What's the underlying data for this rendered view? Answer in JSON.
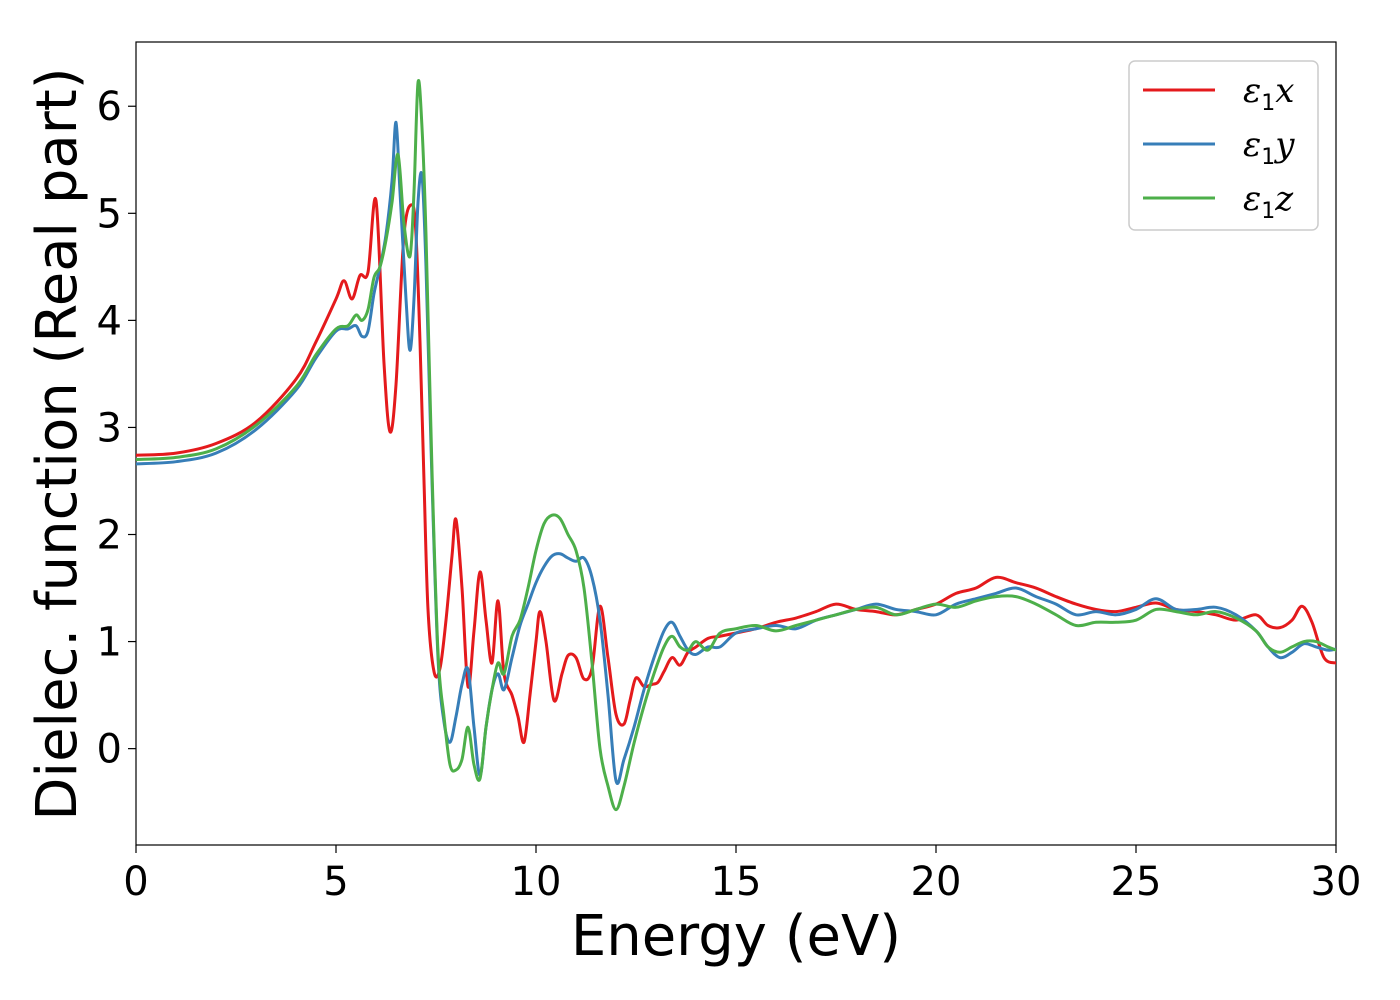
{
  "chart_data": {
    "type": "line",
    "title": "",
    "xlabel": "Energy (eV)",
    "ylabel": "Dielec. function (Real part)",
    "xlim": [
      0,
      30
    ],
    "ylim": [
      -0.9,
      6.6
    ],
    "xticks": [
      0,
      5,
      10,
      15,
      20,
      25,
      30
    ],
    "yticks": [
      0,
      1,
      2,
      3,
      4,
      5,
      6
    ],
    "grid": false,
    "legend_position": "top-right",
    "series": [
      {
        "name": "ε1x",
        "legend": {
          "symbol": "ε",
          "sub": "1",
          "var": "x"
        },
        "color": "#e41a1c",
        "x": [
          0,
          1,
          2,
          3,
          4,
          4.5,
          5,
          5.2,
          5.4,
          5.6,
          5.8,
          6.0,
          6.2,
          6.35,
          6.5,
          6.7,
          6.9,
          7.0,
          7.1,
          7.2,
          7.3,
          7.45,
          7.6,
          7.75,
          7.9,
          8.0,
          8.15,
          8.3,
          8.45,
          8.6,
          8.75,
          8.9,
          9.05,
          9.2,
          9.4,
          9.55,
          9.7,
          9.85,
          10.0,
          10.1,
          10.25,
          10.45,
          10.65,
          10.8,
          11.0,
          11.2,
          11.4,
          11.6,
          11.8,
          12.0,
          12.2,
          12.35,
          12.5,
          12.7,
          12.9,
          13.05,
          13.2,
          13.4,
          13.6,
          13.8,
          14.0,
          14.3,
          14.6,
          15.0,
          15.5,
          16.0,
          16.5,
          17.0,
          17.5,
          18.0,
          18.5,
          19.0,
          19.5,
          20.0,
          20.5,
          21.0,
          21.5,
          22.0,
          22.5,
          23.0,
          23.5,
          24.0,
          24.5,
          25.0,
          25.5,
          26.0,
          26.5,
          27.0,
          27.5,
          28.0,
          28.3,
          28.6,
          28.9,
          29.15,
          29.4,
          29.7,
          30.0
        ],
        "y": [
          2.74,
          2.76,
          2.85,
          3.05,
          3.45,
          3.8,
          4.2,
          4.37,
          4.2,
          4.42,
          4.45,
          5.12,
          3.6,
          2.96,
          3.4,
          4.8,
          5.08,
          4.8,
          3.8,
          2.5,
          1.3,
          0.72,
          0.75,
          1.2,
          1.8,
          2.14,
          1.5,
          0.58,
          1.1,
          1.65,
          1.2,
          0.8,
          1.38,
          0.7,
          0.5,
          0.3,
          0.06,
          0.5,
          1.0,
          1.28,
          1.0,
          0.45,
          0.7,
          0.87,
          0.85,
          0.65,
          0.75,
          1.33,
          0.85,
          0.32,
          0.23,
          0.45,
          0.66,
          0.58,
          0.6,
          0.62,
          0.72,
          0.85,
          0.78,
          0.9,
          0.95,
          1.03,
          1.05,
          1.08,
          1.12,
          1.18,
          1.22,
          1.28,
          1.35,
          1.3,
          1.28,
          1.25,
          1.3,
          1.35,
          1.45,
          1.5,
          1.6,
          1.55,
          1.5,
          1.42,
          1.35,
          1.3,
          1.28,
          1.32,
          1.36,
          1.3,
          1.28,
          1.25,
          1.2,
          1.25,
          1.15,
          1.13,
          1.2,
          1.33,
          1.18,
          0.85,
          0.8
        ]
      },
      {
        "name": "ε1y",
        "legend": {
          "symbol": "ε",
          "sub": "1",
          "var": "y"
        },
        "color": "#377eb8",
        "x": [
          0,
          1,
          2,
          3,
          4,
          4.5,
          5,
          5.3,
          5.5,
          5.65,
          5.8,
          5.95,
          6.1,
          6.25,
          6.4,
          6.5,
          6.6,
          6.75,
          6.85,
          6.95,
          7.05,
          7.15,
          7.25,
          7.4,
          7.55,
          7.7,
          7.85,
          8.0,
          8.15,
          8.3,
          8.45,
          8.6,
          8.75,
          8.9,
          9.05,
          9.2,
          9.4,
          9.6,
          9.8,
          10.0,
          10.2,
          10.4,
          10.6,
          10.8,
          11.0,
          11.2,
          11.4,
          11.6,
          11.8,
          12.0,
          12.2,
          12.45,
          12.7,
          12.95,
          13.2,
          13.4,
          13.6,
          13.8,
          14.0,
          14.3,
          14.6,
          15.0,
          15.5,
          16.0,
          16.5,
          17.0,
          17.5,
          18.0,
          18.5,
          19.0,
          19.5,
          20.0,
          20.5,
          21.0,
          21.5,
          22.0,
          22.5,
          23.0,
          23.5,
          24.0,
          24.5,
          25.0,
          25.5,
          26.0,
          26.5,
          27.0,
          27.5,
          28.0,
          28.3,
          28.6,
          28.9,
          29.2,
          29.5,
          29.8,
          30.0
        ],
        "y": [
          2.66,
          2.68,
          2.76,
          2.98,
          3.35,
          3.65,
          3.9,
          3.92,
          3.95,
          3.85,
          3.9,
          4.25,
          4.5,
          4.8,
          5.3,
          5.85,
          5.2,
          4.2,
          3.72,
          4.2,
          5.1,
          5.35,
          4.5,
          2.5,
          0.85,
          0.25,
          0.06,
          0.3,
          0.6,
          0.74,
          0.2,
          -0.25,
          0.2,
          0.55,
          0.7,
          0.55,
          0.85,
          1.15,
          1.35,
          1.55,
          1.7,
          1.8,
          1.82,
          1.78,
          1.75,
          1.78,
          1.6,
          1.2,
          0.5,
          -0.3,
          -0.1,
          0.2,
          0.55,
          0.85,
          1.1,
          1.18,
          1.05,
          0.92,
          0.88,
          0.95,
          0.95,
          1.08,
          1.12,
          1.15,
          1.12,
          1.2,
          1.25,
          1.3,
          1.35,
          1.3,
          1.28,
          1.25,
          1.35,
          1.4,
          1.45,
          1.5,
          1.42,
          1.35,
          1.25,
          1.28,
          1.25,
          1.3,
          1.4,
          1.3,
          1.3,
          1.32,
          1.25,
          1.1,
          0.95,
          0.85,
          0.9,
          0.98,
          0.95,
          0.92,
          0.93
        ]
      },
      {
        "name": "ε1z",
        "legend": {
          "symbol": "ε",
          "sub": "1",
          "var": "z"
        },
        "color": "#4daf4a",
        "x": [
          0,
          1,
          2,
          3,
          4,
          4.5,
          5,
          5.3,
          5.5,
          5.65,
          5.8,
          5.95,
          6.1,
          6.25,
          6.4,
          6.55,
          6.7,
          6.85,
          6.95,
          7.05,
          7.15,
          7.25,
          7.4,
          7.55,
          7.7,
          7.85,
          8.0,
          8.15,
          8.3,
          8.45,
          8.6,
          8.75,
          8.9,
          9.05,
          9.2,
          9.4,
          9.6,
          9.8,
          10.0,
          10.2,
          10.4,
          10.6,
          10.8,
          11.0,
          11.2,
          11.4,
          11.6,
          11.8,
          12.0,
          12.2,
          12.45,
          12.7,
          12.95,
          13.2,
          13.4,
          13.6,
          13.8,
          14.0,
          14.3,
          14.6,
          15.0,
          15.5,
          16.0,
          16.5,
          17.0,
          17.5,
          18.0,
          18.5,
          19.0,
          19.5,
          20.0,
          20.5,
          21.0,
          21.5,
          22.0,
          22.5,
          23.0,
          23.5,
          24.0,
          24.5,
          25.0,
          25.5,
          26.0,
          26.5,
          27.0,
          27.5,
          28.0,
          28.3,
          28.6,
          28.9,
          29.2,
          29.5,
          29.8,
          30.0
        ],
        "y": [
          2.7,
          2.72,
          2.8,
          3.02,
          3.38,
          3.68,
          3.92,
          3.95,
          4.05,
          4.0,
          4.1,
          4.4,
          4.5,
          4.75,
          5.1,
          5.55,
          4.9,
          4.6,
          5.2,
          6.22,
          5.8,
          4.8,
          2.6,
          0.9,
          0.3,
          -0.15,
          -0.2,
          -0.1,
          0.2,
          -0.15,
          -0.28,
          0.2,
          0.55,
          0.8,
          0.7,
          1.05,
          1.2,
          1.5,
          1.85,
          2.1,
          2.18,
          2.15,
          2.0,
          1.85,
          1.5,
          0.8,
          0.0,
          -0.35,
          -0.57,
          -0.35,
          0.05,
          0.4,
          0.7,
          0.95,
          1.05,
          0.95,
          0.92,
          1.0,
          0.92,
          1.08,
          1.12,
          1.15,
          1.1,
          1.15,
          1.2,
          1.25,
          1.3,
          1.32,
          1.25,
          1.3,
          1.35,
          1.32,
          1.38,
          1.42,
          1.42,
          1.35,
          1.25,
          1.15,
          1.18,
          1.18,
          1.2,
          1.3,
          1.28,
          1.25,
          1.28,
          1.22,
          1.1,
          0.95,
          0.9,
          0.95,
          1.0,
          1.0,
          0.95,
          0.92
        ]
      }
    ]
  }
}
